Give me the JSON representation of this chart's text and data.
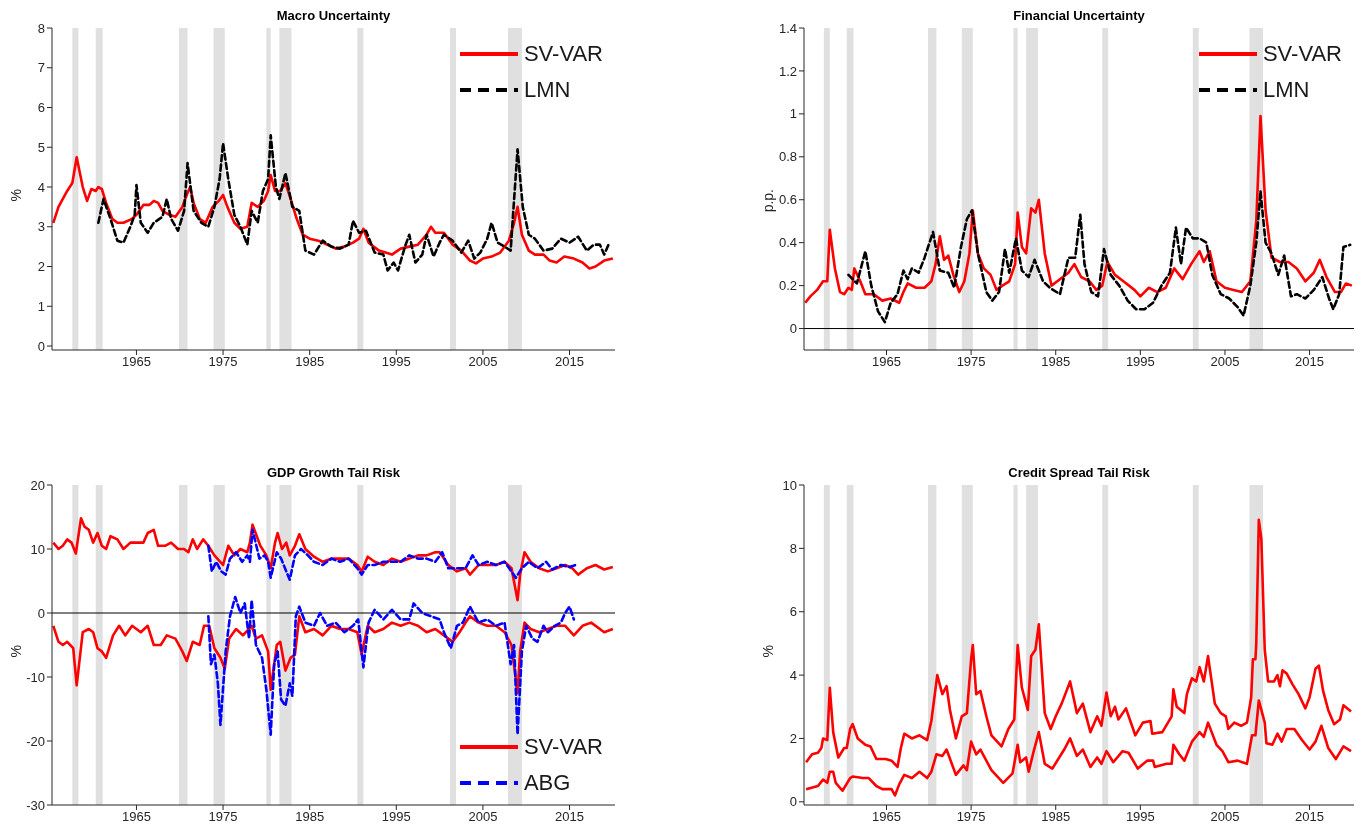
{
  "chart_data": [
    {
      "type": "line",
      "title": "Macro Uncertainty",
      "ylabel": "%",
      "xlim": [
        1955.25,
        2020.25
      ],
      "xticks": [
        1965,
        1975,
        1985,
        1995,
        2005,
        2015
      ],
      "ylim": [
        -0.1,
        8
      ],
      "yticks": [
        0,
        1,
        2,
        3,
        4,
        5,
        6,
        7,
        8
      ],
      "grid": false,
      "legend": "top right",
      "bands": [
        {
          "axis": "x",
          "from": 1957.6,
          "to": 1958.3,
          "color": "#e0e0e0"
        },
        {
          "axis": "x",
          "from": 1960.3,
          "to": 1961.1,
          "color": "#e0e0e0"
        },
        {
          "axis": "x",
          "from": 1969.9,
          "to": 1970.9,
          "color": "#e0e0e0"
        },
        {
          "axis": "x",
          "from": 1973.9,
          "to": 1975.2,
          "color": "#e0e0e0"
        },
        {
          "axis": "x",
          "from": 1980.0,
          "to": 1980.5,
          "color": "#e0e0e0"
        },
        {
          "axis": "x",
          "from": 1981.5,
          "to": 1982.9,
          "color": "#e0e0e0"
        },
        {
          "axis": "x",
          "from": 1990.5,
          "to": 1991.2,
          "color": "#e0e0e0"
        },
        {
          "axis": "x",
          "from": 2001.2,
          "to": 2001.9,
          "color": "#e0e0e0"
        },
        {
          "axis": "x",
          "from": 2007.9,
          "to": 2009.5,
          "color": "#e0e0e0"
        }
      ],
      "series": [
        {
          "name": "SV-VAR",
          "color": "#ff0000",
          "line_style": "solid",
          "x": [
            1955.4,
            1956,
            1957,
            1957.6,
            1958.1,
            1958.8,
            1959.3,
            1959.8,
            1960.3,
            1960.6,
            1961,
            1961.5,
            1962.2,
            1962.8,
            1963.5,
            1964.5,
            1965,
            1965.8,
            1966.5,
            1967,
            1967.5,
            1968,
            1968.8,
            1969.5,
            1970.3,
            1970.8,
            1971.2,
            1971.6,
            1972.3,
            1973,
            1973.8,
            1974.5,
            1975,
            1975.5,
            1976.3,
            1977,
            1977.8,
            1978.3,
            1979,
            1979.7,
            1980.2,
            1980.5,
            1981,
            1981.6,
            1982.2,
            1982.8,
            1983.5,
            1984.2,
            1985,
            1986,
            1987,
            1988,
            1989,
            1990,
            1990.7,
            1991.2,
            1991.8,
            1993,
            1994.5,
            1995.5,
            1996.5,
            1997.5,
            1998.5,
            1999,
            1999.5,
            2000.5,
            2001.5,
            2002.5,
            2003.5,
            2004.2,
            2005,
            2006,
            2007,
            2008,
            2008.6,
            2009.0,
            2009.5,
            2010.3,
            2011,
            2012,
            2012.7,
            2013.5,
            2014.4,
            2015.5,
            2016.5,
            2017.3,
            2018,
            2019,
            2020
          ],
          "values": [
            3.1,
            3.5,
            3.9,
            4.1,
            4.75,
            4.0,
            3.65,
            3.95,
            3.9,
            4.0,
            3.95,
            3.6,
            3.2,
            3.1,
            3.1,
            3.2,
            3.3,
            3.55,
            3.55,
            3.65,
            3.6,
            3.4,
            3.3,
            3.25,
            3.5,
            3.8,
            4.0,
            3.6,
            3.2,
            3.1,
            3.5,
            3.65,
            3.8,
            3.5,
            3.1,
            2.95,
            3.0,
            3.6,
            3.5,
            3.65,
            3.9,
            4.3,
            3.9,
            3.9,
            4.1,
            3.7,
            3.2,
            2.8,
            2.7,
            2.65,
            2.55,
            2.45,
            2.5,
            2.6,
            2.7,
            2.95,
            2.6,
            2.4,
            2.3,
            2.45,
            2.5,
            2.55,
            2.8,
            3.0,
            2.85,
            2.85,
            2.55,
            2.4,
            2.15,
            2.08,
            2.2,
            2.25,
            2.35,
            2.65,
            3.1,
            3.5,
            2.8,
            2.4,
            2.3,
            2.3,
            2.15,
            2.1,
            2.25,
            2.2,
            2.1,
            1.95,
            2.0,
            2.15,
            2.2
          ]
        },
        {
          "name": "LMN",
          "color": "#000000",
          "line_style": "dashed",
          "x": [
            1960.6,
            1961.2,
            1962,
            1962.8,
            1963.5,
            1964.3,
            1964.8,
            1965,
            1965.5,
            1966.3,
            1967,
            1968,
            1968.5,
            1969,
            1969.8,
            1970.5,
            1970.9,
            1971.6,
            1972.5,
            1973.3,
            1974,
            1974.6,
            1975.0,
            1975.6,
            1976.3,
            1977,
            1977.8,
            1978.3,
            1979,
            1979.6,
            1980.2,
            1980.5,
            1981.1,
            1981.5,
            1982.2,
            1983,
            1983.8,
            1984.5,
            1985.5,
            1986.5,
            1987.5,
            1988.5,
            1989.5,
            1990,
            1990.7,
            1991.5,
            1992.5,
            1993.5,
            1994,
            1994.7,
            1995.2,
            1996,
            1996.5,
            1997.2,
            1998,
            1998.5,
            1999.3,
            2000,
            2000.5,
            2001.5,
            2002.5,
            2003.3,
            2004,
            2004.7,
            2005.5,
            2006,
            2006.7,
            2007.5,
            2008.2,
            2008.7,
            2009.0,
            2009.6,
            2010.3,
            2011,
            2012,
            2013,
            2014,
            2015,
            2016,
            2017,
            2017.8,
            2018.5,
            2019,
            2019.6
          ],
          "values": [
            3.1,
            3.7,
            3.2,
            2.65,
            2.6,
            3.0,
            3.3,
            4.05,
            3.1,
            2.85,
            3.1,
            3.25,
            3.7,
            3.2,
            2.9,
            3.4,
            4.6,
            3.4,
            3.1,
            3.0,
            3.5,
            4.2,
            5.1,
            4.2,
            3.3,
            3.0,
            2.55,
            3.4,
            3.1,
            3.9,
            4.2,
            5.3,
            4.0,
            3.7,
            4.35,
            3.5,
            3.4,
            2.4,
            2.3,
            2.65,
            2.5,
            2.45,
            2.55,
            3.15,
            2.85,
            2.9,
            2.35,
            2.3,
            1.9,
            2.1,
            1.9,
            2.5,
            2.8,
            2.1,
            2.3,
            2.8,
            2.25,
            2.6,
            2.8,
            2.65,
            2.35,
            2.65,
            2.2,
            2.35,
            2.7,
            3.1,
            2.6,
            2.5,
            2.4,
            4.0,
            4.95,
            3.5,
            2.8,
            2.7,
            2.4,
            2.45,
            2.7,
            2.6,
            2.75,
            2.4,
            2.55,
            2.55,
            2.3,
            2.6
          ]
        }
      ]
    },
    {
      "type": "line",
      "title": "Financial Uncertainty",
      "ylabel": "p.p.",
      "xlim": [
        1955.25,
        2020.25
      ],
      "xticks": [
        1965,
        1975,
        1985,
        1995,
        2005,
        2015
      ],
      "ylim": [
        -0.1,
        1.4
      ],
      "yticks": [
        0,
        0.2,
        0.4,
        0.6,
        0.8,
        1,
        1.2,
        1.4
      ],
      "grid": false,
      "legend": "top right",
      "ref_lines": [
        {
          "axis": "y",
          "value": 0,
          "color": "#000000"
        }
      ],
      "bands": [
        {
          "axis": "x",
          "from": 1957.6,
          "to": 1958.3,
          "color": "#e0e0e0"
        },
        {
          "axis": "x",
          "from": 1960.3,
          "to": 1961.1,
          "color": "#e0e0e0"
        },
        {
          "axis": "x",
          "from": 1969.9,
          "to": 1970.9,
          "color": "#e0e0e0"
        },
        {
          "axis": "x",
          "from": 1973.9,
          "to": 1975.2,
          "color": "#e0e0e0"
        },
        {
          "axis": "x",
          "from": 1980.0,
          "to": 1980.5,
          "color": "#e0e0e0"
        },
        {
          "axis": "x",
          "from": 1981.5,
          "to": 1982.9,
          "color": "#e0e0e0"
        },
        {
          "axis": "x",
          "from": 1990.5,
          "to": 1991.2,
          "color": "#e0e0e0"
        },
        {
          "axis": "x",
          "from": 2001.2,
          "to": 2001.9,
          "color": "#e0e0e0"
        },
        {
          "axis": "x",
          "from": 2007.9,
          "to": 2009.5,
          "color": "#e0e0e0"
        }
      ],
      "series": [
        {
          "name": "SV-VAR",
          "color": "#ff0000",
          "line_style": "solid",
          "x": [
            1955.4,
            1956,
            1956.8,
            1957.5,
            1958,
            1958.3,
            1958.9,
            1959.5,
            1960,
            1960.5,
            1960.9,
            1961.2,
            1961.9,
            1962.5,
            1963.5,
            1964.5,
            1965.5,
            1966.5,
            1967,
            1967.5,
            1968.5,
            1969.5,
            1970.3,
            1970.8,
            1971.3,
            1971.8,
            1972.3,
            1972.9,
            1973.6,
            1974.2,
            1974.8,
            1975.2,
            1975.8,
            1976.5,
            1977.3,
            1978,
            1978.7,
            1979.5,
            1980.2,
            1980.5,
            1981,
            1981.5,
            1982.1,
            1982.6,
            1983.0,
            1983.7,
            1984.5,
            1985.5,
            1986.5,
            1987.2,
            1988,
            1989,
            1989.8,
            1990.5,
            1991.1,
            1992,
            1993,
            1994.3,
            1995,
            1996,
            1997,
            1998,
            1999,
            2000,
            2001,
            2002,
            2002.5,
            2003.2,
            2004,
            2005,
            2006,
            2007,
            2008,
            2008.7,
            2009.2,
            2009.8,
            2010.5,
            2011.5,
            2012.5,
            2013.5,
            2014.5,
            2015.5,
            2016.2,
            2017,
            2018,
            2018.7,
            2019.3,
            2020
          ],
          "values": [
            0.12,
            0.15,
            0.18,
            0.22,
            0.22,
            0.46,
            0.28,
            0.17,
            0.16,
            0.19,
            0.18,
            0.28,
            0.22,
            0.16,
            0.16,
            0.13,
            0.14,
            0.12,
            0.17,
            0.21,
            0.19,
            0.19,
            0.22,
            0.3,
            0.43,
            0.32,
            0.34,
            0.25,
            0.17,
            0.22,
            0.35,
            0.55,
            0.35,
            0.28,
            0.25,
            0.18,
            0.2,
            0.22,
            0.3,
            0.54,
            0.38,
            0.35,
            0.56,
            0.54,
            0.6,
            0.35,
            0.2,
            0.23,
            0.26,
            0.3,
            0.24,
            0.22,
            0.18,
            0.2,
            0.31,
            0.25,
            0.22,
            0.18,
            0.15,
            0.19,
            0.17,
            0.19,
            0.28,
            0.23,
            0.3,
            0.36,
            0.31,
            0.36,
            0.22,
            0.19,
            0.18,
            0.17,
            0.22,
            0.5,
            0.99,
            0.55,
            0.33,
            0.31,
            0.31,
            0.28,
            0.22,
            0.26,
            0.32,
            0.24,
            0.17,
            0.17,
            0.21,
            0.2
          ]
        },
        {
          "name": "LMN",
          "color": "#000000",
          "line_style": "dashed",
          "x": [
            1960.5,
            1961.5,
            1962.5,
            1963.2,
            1964,
            1964.8,
            1965.5,
            1966.3,
            1967,
            1967.5,
            1968,
            1968.8,
            1969.5,
            1970.5,
            1971.3,
            1972.3,
            1973,
            1973.8,
            1974.5,
            1975.1,
            1975.8,
            1976.8,
            1977.5,
            1978.3,
            1979,
            1979.5,
            1980.3,
            1981,
            1981.8,
            1982.5,
            1983.5,
            1984.3,
            1985.5,
            1986.5,
            1987.3,
            1987.9,
            1988.4,
            1989.2,
            1990,
            1990.7,
            1991.5,
            1992.5,
            1993.5,
            1994.5,
            1995.5,
            1996.5,
            1997.5,
            1998.5,
            1999.2,
            1999.8,
            2000.4,
            2001.2,
            2002,
            2002.8,
            2003.5,
            2004.5,
            2005.5,
            2006.5,
            2007.2,
            2008,
            2008.7,
            2009.2,
            2009.8,
            2010.5,
            2011.3,
            2012,
            2012.8,
            2013.5,
            2014.5,
            2015.5,
            2016.5,
            2017.3,
            2017.8,
            2018.5,
            2019,
            2019.8
          ],
          "values": [
            0.25,
            0.21,
            0.36,
            0.2,
            0.08,
            0.03,
            0.12,
            0.16,
            0.27,
            0.23,
            0.28,
            0.26,
            0.33,
            0.45,
            0.27,
            0.26,
            0.19,
            0.38,
            0.51,
            0.55,
            0.35,
            0.17,
            0.13,
            0.17,
            0.37,
            0.26,
            0.42,
            0.27,
            0.24,
            0.32,
            0.22,
            0.19,
            0.16,
            0.33,
            0.33,
            0.53,
            0.3,
            0.17,
            0.15,
            0.37,
            0.25,
            0.2,
            0.13,
            0.09,
            0.09,
            0.12,
            0.2,
            0.26,
            0.47,
            0.3,
            0.47,
            0.42,
            0.42,
            0.4,
            0.25,
            0.16,
            0.14,
            0.1,
            0.06,
            0.2,
            0.4,
            0.64,
            0.4,
            0.35,
            0.25,
            0.34,
            0.15,
            0.16,
            0.14,
            0.18,
            0.24,
            0.14,
            0.09,
            0.16,
            0.38,
            0.39
          ]
        }
      ]
    },
    {
      "type": "line",
      "title": "GDP Growth Tail Risk",
      "ylabel": "%",
      "xlim": [
        1955.25,
        2020.25
      ],
      "xticks": [
        1965,
        1975,
        1985,
        1995,
        2005,
        2015
      ],
      "ylim": [
        -30,
        20
      ],
      "yticks": [
        -30,
        -20,
        -10,
        0,
        10,
        20
      ],
      "grid": false,
      "legend": "bottom right",
      "ref_lines": [
        {
          "axis": "y",
          "value": 0,
          "color": "#000000"
        }
      ],
      "bands": [
        {
          "axis": "x",
          "from": 1957.6,
          "to": 1958.3,
          "color": "#e0e0e0"
        },
        {
          "axis": "x",
          "from": 1960.3,
          "to": 1961.1,
          "color": "#e0e0e0"
        },
        {
          "axis": "x",
          "from": 1969.9,
          "to": 1970.9,
          "color": "#e0e0e0"
        },
        {
          "axis": "x",
          "from": 1973.9,
          "to": 1975.2,
          "color": "#e0e0e0"
        },
        {
          "axis": "x",
          "from": 1980.0,
          "to": 1980.5,
          "color": "#e0e0e0"
        },
        {
          "axis": "x",
          "from": 1981.5,
          "to": 1982.9,
          "color": "#e0e0e0"
        },
        {
          "axis": "x",
          "from": 1990.5,
          "to": 1991.2,
          "color": "#e0e0e0"
        },
        {
          "axis": "x",
          "from": 2001.2,
          "to": 2001.9,
          "color": "#e0e0e0"
        },
        {
          "axis": "x",
          "from": 2007.9,
          "to": 2009.5,
          "color": "#e0e0e0"
        }
      ],
      "series": [
        {
          "name": "SV-VAR",
          "color": "#ff0000",
          "line_style": "solid",
          "x": [
            1955.4,
            1956,
            1956.5,
            1957,
            1957.5,
            1958,
            1958.6,
            1959,
            1959.5,
            1960,
            1960.5,
            1961,
            1961.5,
            1962,
            1962.8,
            1963.5,
            1964.3,
            1965,
            1965.8,
            1966.3,
            1967,
            1967.5,
            1968.3,
            1969,
            1969.8,
            1970.5,
            1971,
            1971.5,
            1972,
            1972.7,
            1973.3,
            1974,
            1975,
            1975.6,
            1976.3,
            1977,
            1977.8,
            1978.1,
            1978.4,
            1979.3,
            1980,
            1980.5,
            1981,
            1981.3,
            1981.8,
            1982.3,
            1982.7,
            1983.3,
            1983.8,
            1984.5,
            1985.5,
            1986.5,
            1987.5,
            1988.5,
            1989.5,
            1990.5,
            1991,
            1991.7,
            1992.5,
            1993.5,
            1994.5,
            1995.5,
            1996.5,
            1997.5,
            1998.5,
            1999.5,
            2000,
            2000.5,
            2001,
            2002,
            2003,
            2003.5,
            2004.5,
            2005.5,
            2006.5,
            2007.5,
            2008.3,
            2009.0,
            2009.3,
            2009.8,
            2010.5,
            2011.5,
            2012.5,
            2013.5,
            2014.5,
            2015.3,
            2016,
            2017,
            2018,
            2019,
            2020
          ],
          "values": [
            11,
            10,
            10.5,
            11.5,
            11,
            9.3,
            14.8,
            13.5,
            13,
            11,
            12.5,
            10.5,
            10,
            12,
            11.5,
            10,
            11,
            11,
            11,
            12.5,
            13,
            10.5,
            10.5,
            11,
            10,
            10,
            9.5,
            11.5,
            10,
            11.5,
            10.5,
            9,
            7.5,
            10.5,
            9,
            10,
            9.5,
            11,
            13.8,
            10.5,
            9,
            7,
            11,
            12.5,
            10,
            11,
            9,
            10.5,
            12.3,
            10,
            8.8,
            8,
            8.5,
            8.5,
            8.5,
            7.5,
            6.5,
            8.8,
            8,
            7.5,
            8.5,
            8,
            8.5,
            9,
            9,
            9.5,
            9.5,
            8.5,
            7.5,
            6.5,
            7,
            6,
            7.5,
            7.5,
            7.5,
            8,
            7,
            2,
            6,
            9.5,
            8,
            7,
            6.5,
            7,
            7.5,
            7,
            6,
            7,
            7.5,
            6.8,
            7.2
          ]
        },
        {
          "color": "#ff0000",
          "line_style": "solid",
          "x": [
            1955.4,
            1956,
            1956.5,
            1957,
            1957.7,
            1958.1,
            1958.8,
            1959.5,
            1960,
            1960.5,
            1961,
            1961.5,
            1962.3,
            1963,
            1963.7,
            1964.5,
            1965.5,
            1966.3,
            1967,
            1967.8,
            1968.5,
            1969.5,
            1970.3,
            1970.8,
            1971.5,
            1972.3,
            1972.8,
            1973.4,
            1974,
            1974.7,
            1975.2,
            1975.7,
            1976.5,
            1977.3,
            1978.3,
            1978.8,
            1979.5,
            1980.2,
            1980.5,
            1981.2,
            1981.6,
            1982.2,
            1982.8,
            1983.3,
            1983.8,
            1984.5,
            1985.5,
            1986.5,
            1987.5,
            1988.5,
            1989.5,
            1990.5,
            1991,
            1991.7,
            1992.5,
            1993.5,
            1994.5,
            1995.5,
            1996.5,
            1997.5,
            1998.5,
            1999.5,
            2000.5,
            2001.5,
            2002.3,
            2003,
            2003.5,
            2004.5,
            2005.5,
            2006.5,
            2007.5,
            2008.3,
            2009.0,
            2009.3,
            2009.8,
            2010.5,
            2011.5,
            2012.5,
            2013.5,
            2014.5,
            2015.5,
            2016.5,
            2017.5,
            2018.5,
            2019,
            2020
          ],
          "values": [
            -2,
            -4.5,
            -5,
            -4.5,
            -5.5,
            -11.3,
            -3,
            -2.5,
            -3,
            -5.5,
            -6,
            -7,
            -3.5,
            -2,
            -3.5,
            -2,
            -3,
            -2,
            -5,
            -5,
            -3.5,
            -4,
            -6,
            -7.5,
            -4.5,
            -5,
            -2,
            -2,
            -5.5,
            -7,
            -8.7,
            -4,
            -2.5,
            -3.5,
            -2,
            -4,
            -3.5,
            -6,
            -12,
            -5,
            -4.5,
            -9,
            -7,
            -6.5,
            -0.5,
            -3,
            -2.5,
            -3.5,
            -2,
            -2.5,
            -2.5,
            -3,
            -6.5,
            -2,
            -3,
            -2.5,
            -1.5,
            -2,
            -1.5,
            -2,
            -3,
            -2.5,
            -3.5,
            -4.5,
            -3,
            -1.5,
            -0.5,
            -1.5,
            -2,
            -2,
            -3,
            -5,
            -12.5,
            -6,
            -1.5,
            -2.5,
            -3,
            -2.5,
            -2,
            -2,
            -3.5,
            -2,
            -1.5,
            -2.5,
            -3,
            -2.5
          ]
        },
        {
          "name": "ABG",
          "color": "#0000ff",
          "line_style": "dashed",
          "x": [
            1973.3,
            1973.7,
            1974.2,
            1974.8,
            1975.3,
            1975.8,
            1976.5,
            1977.2,
            1977.8,
            1978.1,
            1978.4,
            1979.2,
            1979.8,
            1980.2,
            1980.5,
            1981.2,
            1981.7,
            1982.3,
            1982.7,
            1983.3,
            1984,
            1984.8,
            1985.5,
            1986.5,
            1987.5,
            1988.5,
            1989.5,
            1990.5,
            1991,
            1991.7,
            1992.5,
            1993.5,
            1994.5,
            1995.5,
            1996.5,
            1997.5,
            1998.5,
            1999.5,
            2000.3,
            2001,
            2002,
            2003,
            2003.8,
            2004.5,
            2005.5,
            2006.5,
            2007.5,
            2008.3,
            2008.8,
            2009.5,
            2010.3,
            2011.3,
            2012.3,
            2013,
            2014,
            2015,
            2015.7
          ],
          "values": [
            10.5,
            6.5,
            8,
            6.5,
            6,
            8.5,
            9.5,
            8,
            9,
            8,
            13,
            8.5,
            9,
            8,
            5.5,
            9.5,
            8.5,
            6.5,
            5.2,
            9,
            10,
            9,
            8,
            7.5,
            8.5,
            8,
            8.5,
            7,
            6,
            7.5,
            7.5,
            8,
            8,
            8,
            9,
            8.5,
            8.5,
            8,
            9.5,
            7,
            7,
            7,
            9,
            7.5,
            8,
            7.5,
            8,
            6.5,
            5.5,
            7,
            8,
            7,
            8,
            6.8,
            7.5,
            7.2,
            7.5
          ]
        },
        {
          "color": "#0000ff",
          "line_style": "dashed",
          "x": [
            1973.3,
            1973.6,
            1974,
            1974.4,
            1974.7,
            1975.3,
            1975.8,
            1976.4,
            1977,
            1977.5,
            1978,
            1978.3,
            1978.8,
            1979.5,
            1980,
            1980.5,
            1980.9,
            1981.3,
            1981.7,
            1982.2,
            1982.7,
            1983,
            1983.4,
            1983.8,
            1984.5,
            1985.5,
            1986.2,
            1987,
            1988,
            1989,
            1990,
            1990.6,
            1991.2,
            1991.8,
            1992.5,
            1993.5,
            1994.5,
            1995.5,
            1996.5,
            1997,
            1998,
            1999,
            2000,
            2000.5,
            2001.3,
            2002,
            2002.7,
            2003.5,
            2004.5,
            2005.5,
            2006.5,
            2007.5,
            2008.2,
            2008.6,
            2009.0,
            2009.5,
            2010,
            2010.7,
            2011.3,
            2012,
            2012.5,
            2013.3,
            2014,
            2014.5,
            2015,
            2015.5
          ],
          "values": [
            -0.5,
            -8,
            -6.5,
            -11,
            -17.5,
            -6,
            -0.5,
            2.5,
            0,
            1.5,
            -4,
            2,
            -5,
            -7,
            -12,
            -19,
            -8,
            -6,
            -13.5,
            -14.5,
            -11,
            -13,
            -0.5,
            1,
            -1.5,
            -2,
            0,
            -2,
            -1.5,
            -3,
            -2,
            -1,
            -8.5,
            -1.5,
            0.5,
            -1,
            0.5,
            -1,
            -1,
            1.5,
            0,
            -0.5,
            -1,
            -3,
            -5.5,
            -2,
            -1.5,
            1,
            -1.5,
            -1,
            -2,
            -1.5,
            -8,
            -5,
            -19,
            -6,
            -2,
            -4,
            -4.5,
            -2,
            -3,
            -2,
            -1.5,
            0,
            1,
            -1
          ]
        }
      ]
    },
    {
      "type": "line",
      "title": "Credit Spread Tail Risk",
      "ylabel": "%",
      "xlim": [
        1955.25,
        2020.25
      ],
      "xticks": [
        1965,
        1975,
        1985,
        1995,
        2005,
        2015
      ],
      "ylim": [
        -0.1,
        10
      ],
      "yticks": [
        0,
        2,
        4,
        6,
        8,
        10
      ],
      "grid": false,
      "legend": false,
      "bands": [
        {
          "axis": "x",
          "from": 1957.6,
          "to": 1958.3,
          "color": "#e0e0e0"
        },
        {
          "axis": "x",
          "from": 1960.3,
          "to": 1961.1,
          "color": "#e0e0e0"
        },
        {
          "axis": "x",
          "from": 1969.9,
          "to": 1970.9,
          "color": "#e0e0e0"
        },
        {
          "axis": "x",
          "from": 1973.9,
          "to": 1975.2,
          "color": "#e0e0e0"
        },
        {
          "axis": "x",
          "from": 1980.0,
          "to": 1980.5,
          "color": "#e0e0e0"
        },
        {
          "axis": "x",
          "from": 1981.5,
          "to": 1982.9,
          "color": "#e0e0e0"
        },
        {
          "axis": "x",
          "from": 1990.5,
          "to": 1991.2,
          "color": "#e0e0e0"
        },
        {
          "axis": "x",
          "from": 2001.2,
          "to": 2001.9,
          "color": "#e0e0e0"
        },
        {
          "axis": "x",
          "from": 2007.9,
          "to": 2009.5,
          "color": "#e0e0e0"
        }
      ],
      "series": [
        {
          "color": "#ff0000",
          "line_style": "solid",
          "x": [
            1955.5,
            1956.2,
            1956.9,
            1957.3,
            1957.5,
            1958.0,
            1958.3,
            1958.7,
            1959.3,
            1960,
            1960.3,
            1960.7,
            1961.0,
            1961.6,
            1962.5,
            1963.1,
            1963.8,
            1964.9,
            1965.6,
            1966.3,
            1966.7,
            1967.1,
            1968.0,
            1968.9,
            1969.8,
            1970.3,
            1971.0,
            1971.6,
            1972.1,
            1972.5,
            1973.2,
            1973.9,
            1974.5,
            1975.0,
            1975.2,
            1975.6,
            1976.1,
            1976.8,
            1977.4,
            1978.6,
            1979.4,
            1980.1,
            1980.5,
            1981.0,
            1981.7,
            1982.1,
            1982.6,
            1983.0,
            1983.7,
            1984.4,
            1985.0,
            1985.7,
            1986.7,
            1987.5,
            1988.2,
            1989.1,
            1989.9,
            1990.4,
            1991.0,
            1991.5,
            1992.0,
            1992.4,
            1993.3,
            1994.4,
            1995.3,
            1996.2,
            1996.4,
            1997.6,
            1998.7,
            1998.9,
            1999.3,
            2000.2,
            2000.5,
            2001.1,
            2001.6,
            2002.0,
            2002.5,
            2003.0,
            2003.8,
            2004.5,
            2005.1,
            2005.4,
            2006.1,
            2006.9,
            2007.6,
            2008.1,
            2008.3,
            2008.6,
            2008.7,
            2009.0,
            2009.3,
            2009.7,
            2010.1,
            2010.8,
            2011.2,
            2011.5,
            2011.8,
            2012.3,
            2013.0,
            2013.7,
            2014.5,
            2015,
            2015.7,
            2016.1,
            2016.6,
            2017.2,
            2017.9,
            2018.6,
            2019.0,
            2019.9
          ],
          "values": [
            1.25,
            1.5,
            1.55,
            1.7,
            2.0,
            1.95,
            3.6,
            2.2,
            1.4,
            1.7,
            1.7,
            2.3,
            2.45,
            2.0,
            1.8,
            1.75,
            1.35,
            1.35,
            1.3,
            1.1,
            1.7,
            2.15,
            2.0,
            2.1,
            1.95,
            2.55,
            4.0,
            3.4,
            3.65,
            2.9,
            2.0,
            2.7,
            2.8,
            4.5,
            4.95,
            3.4,
            3.5,
            2.7,
            2.1,
            1.75,
            2.3,
            2.6,
            4.95,
            3.6,
            2.9,
            4.6,
            4.8,
            5.6,
            2.8,
            2.3,
            2.7,
            3.1,
            3.8,
            2.8,
            3.1,
            2.2,
            2.7,
            2.4,
            3.45,
            2.7,
            3.0,
            2.6,
            2.95,
            2.1,
            2.5,
            2.55,
            2.15,
            2.2,
            2.7,
            3.55,
            3.0,
            2.8,
            3.4,
            3.9,
            3.8,
            4.25,
            3.8,
            4.6,
            3.1,
            2.8,
            2.7,
            2.3,
            2.5,
            2.4,
            2.5,
            3.3,
            4.5,
            4.5,
            5.0,
            8.9,
            8.3,
            4.8,
            3.8,
            3.8,
            4.0,
            3.65,
            4.15,
            4.05,
            3.7,
            3.4,
            2.95,
            3.3,
            4.2,
            4.3,
            3.5,
            2.9,
            2.45,
            2.6,
            3.05,
            2.85
          ]
        },
        {
          "color": "#ff0000",
          "line_style": "solid",
          "x": [
            1955.5,
            1956.9,
            1957.5,
            1958.0,
            1958.3,
            1958.7,
            1959.0,
            1959.8,
            1960.7,
            1961.0,
            1962.2,
            1962.9,
            1963.8,
            1964.5,
            1965.6,
            1966.0,
            1966.5,
            1967.1,
            1968.0,
            1968.9,
            1969.8,
            1970.3,
            1970.9,
            1971.6,
            1972.1,
            1973.2,
            1974.1,
            1974.5,
            1975.0,
            1975.6,
            1976.1,
            1977.4,
            1978.8,
            1979.9,
            1980.5,
            1980.8,
            1981.5,
            1981.8,
            1982.4,
            1983.0,
            1983.7,
            1984.6,
            1986.0,
            1986.7,
            1987.5,
            1988.2,
            1989.1,
            1989.9,
            1990.4,
            1991.0,
            1991.8,
            1992.9,
            1993.6,
            1994.7,
            1995.8,
            1996.5,
            1996.7,
            1998.1,
            1998.7,
            1998.9,
            1999.6,
            2000.2,
            2001.1,
            2002.0,
            2002.5,
            2003.0,
            2004.0,
            2004.7,
            2005.4,
            2006.5,
            2007.6,
            2008.2,
            2008.6,
            2009.0,
            2009.7,
            2009.9,
            2010.6,
            2011.2,
            2011.7,
            2012.3,
            2013.2,
            2014.1,
            2015,
            2015.7,
            2016.4,
            2017.2,
            2018.1,
            2019.0,
            2019.9
          ],
          "values": [
            0.4,
            0.5,
            0.7,
            0.6,
            0.95,
            0.95,
            0.6,
            0.35,
            0.75,
            0.8,
            0.75,
            0.75,
            0.5,
            0.4,
            0.4,
            0.2,
            0.55,
            0.85,
            0.75,
            0.95,
            0.75,
            0.95,
            1.5,
            1.45,
            1.65,
            0.85,
            1.15,
            1.0,
            1.9,
            1.5,
            1.65,
            1.0,
            0.6,
            0.9,
            1.8,
            1.25,
            1.4,
            0.95,
            1.6,
            2.2,
            1.2,
            1.05,
            1.65,
            2.0,
            1.45,
            1.65,
            1.1,
            1.4,
            1.2,
            1.6,
            1.25,
            1.6,
            1.55,
            1.05,
            1.3,
            1.3,
            1.1,
            1.2,
            1.2,
            1.8,
            1.5,
            1.3,
            1.9,
            2.2,
            2.05,
            2.5,
            1.8,
            1.6,
            1.25,
            1.3,
            1.2,
            2.1,
            2.1,
            3.2,
            2.5,
            1.85,
            1.8,
            2.15,
            1.9,
            2.3,
            2.3,
            1.95,
            1.65,
            1.9,
            2.4,
            1.7,
            1.35,
            1.75,
            1.6
          ]
        }
      ]
    }
  ]
}
